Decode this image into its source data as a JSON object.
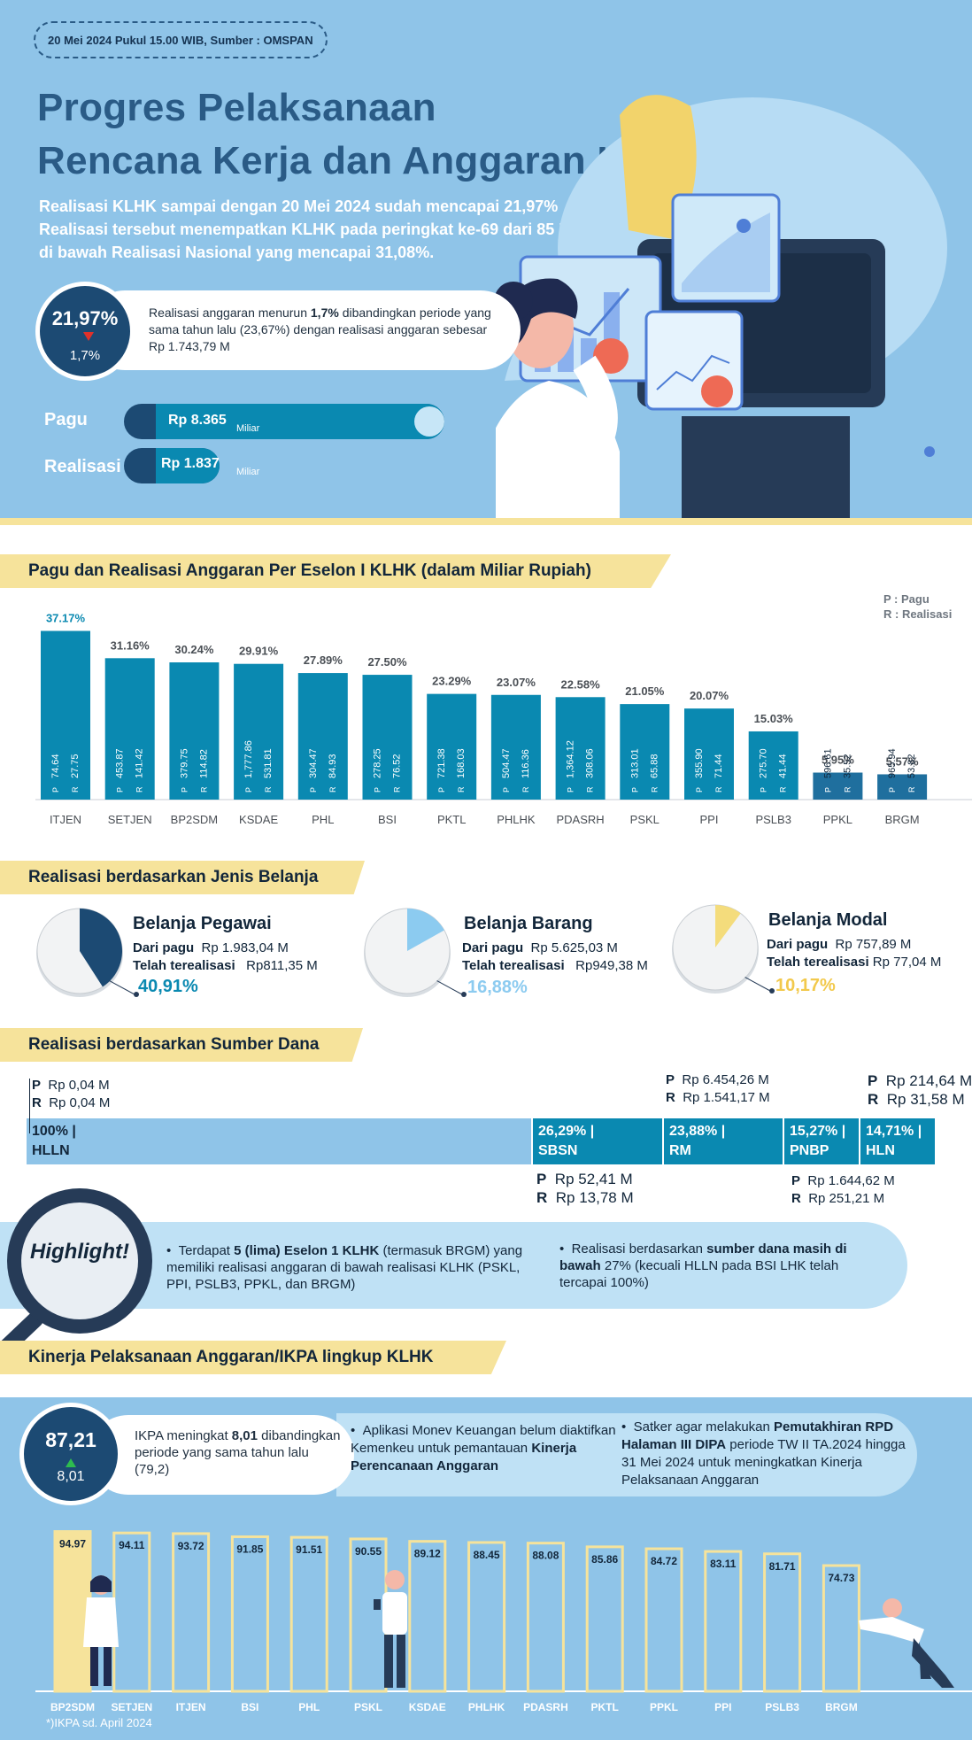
{
  "header": {
    "date_badge": "20 Mei 2024 Pukul 15.00 WIB, Sumber : OMSPAN",
    "title_line1": "Progres Pelaksanaan",
    "title_line2": "Rencana Kerja dan Anggaran KLHK TA. 2024",
    "lead_line1": "Realisasi KLHK sampai dengan 20 Mei 2024 sudah mencapai 21,97%",
    "lead_line2": "Realisasi tersebut menempatkan KLHK pada peringkat ke-69 dari 85 K/L",
    "lead_line3": "di bawah Realisasi Nasional yang mencapai 31,08%."
  },
  "summary": {
    "realisasi_pct": "21,97%",
    "change_pct": "1,7%",
    "change_direction": "down",
    "desc_1": "Realisasi  anggaran menurun ",
    "desc_bold": "1,7%",
    "desc_2": " dibandingkan periode yang sama tahun lalu (23,67%) dengan realisasi anggaran sebesar Rp 1.743,79 M"
  },
  "budget_bars": {
    "pagu_label": "Pagu",
    "pagu_value": "Rp 8.365",
    "pagu_unit": "Miliar",
    "realisasi_label": "Realisasi",
    "realisasi_value": "Rp 1.837",
    "realisasi_unit": "Miliar",
    "realisasi_fraction": 0.2196
  },
  "sections": {
    "eselon": "Pagu dan Realisasi Anggaran Per Eselon I KLHK (dalam Miliar Rupiah)",
    "jenis": "Realisasi berdasarkan Jenis Belanja",
    "sumber": "Realisasi berdasarkan Sumber Dana",
    "ikpa": "Kinerja Pelaksanaan Anggaran/IKPA lingkup KLHK"
  },
  "legend": {
    "p": "P : Pagu",
    "r": "R : Realisasi"
  },
  "colors": {
    "navy": "#1c4a73",
    "teal": "#0a89b1",
    "sky": "#8fc4e8",
    "yellow": "#f6e39b",
    "pie_light": "#8ccbf0",
    "pie_yellow": "#f4dc7c",
    "pct_teal": "#0a89b1",
    "pct_blue": "#8ccbf0",
    "pct_yellow": "#f2c94c"
  },
  "chart_data": [
    {
      "type": "bar",
      "categories": [
        "ITJEN",
        "SETJEN",
        "BP2SDM",
        "KSDAE",
        "PHL",
        "BSI",
        "PKTL",
        "PHLHK",
        "PDASRH",
        "PSKL",
        "PPI",
        "PSLB3",
        "PPKL",
        "BRGM"
      ],
      "series": [
        {
          "name": "Persentase",
          "values": [
            37.17,
            31.16,
            30.24,
            29.91,
            27.89,
            27.5,
            23.29,
            23.07,
            22.58,
            21.05,
            20.07,
            15.03,
            5.95,
            5.57
          ]
        }
      ],
      "pct_labels": [
        "37.17%",
        "31.16%",
        "30.24%",
        "29.91%",
        "27.89%",
        "27.50%",
        "23.29%",
        "23.07%",
        "22.58%",
        "21.05%",
        "20.07%",
        "15.03%",
        "5.95%",
        "5.57%"
      ],
      "pagu": [
        "74.64",
        "453.87",
        "379.75",
        "1,777.86",
        "304.47",
        "278.25",
        "721.38",
        "504.47",
        "1,364.12",
        "313.01",
        "355.90",
        "275.70",
        "596.61",
        "965.94"
      ],
      "realisasi": [
        "27.75",
        "141.42",
        "114.82",
        "531.81",
        "84.93",
        "76.52",
        "168.03",
        "116.36",
        "308.06",
        "65.88",
        "71.44",
        "41.44",
        "35.52",
        "53.82"
      ],
      "p_letter": "P",
      "r_letter": "R",
      "ylim": [
        0,
        40
      ]
    },
    {
      "type": "pie",
      "slices": [
        {
          "title": "Belanja Pegawai",
          "pagu": "Rp 1.983,04 M",
          "realisasi": "Rp811,35 M",
          "pct_label": "40,91%",
          "value": 40.91
        },
        {
          "title": "Belanja Barang",
          "pagu": "Rp 5.625,03 M",
          "realisasi": "Rp949,38 M",
          "pct_label": "16,88%",
          "value": 16.88
        },
        {
          "title": "Belanja Modal",
          "pagu": "Rp 757,89 M",
          "realisasi": "Rp 77,04 M",
          "pct_label": "10,17%",
          "value": 10.17
        }
      ],
      "pagu_label": "Dari pagu",
      "realisasi_label": "Telah terealisasi"
    },
    {
      "type": "table",
      "title": "Realisasi berdasarkan Sumber Dana",
      "sources": [
        {
          "name": "HLLN",
          "pct_label": "100% |",
          "value": 100,
          "pagu": "Rp 0,04 M",
          "realisasi": "Rp 0,04 M"
        },
        {
          "name": "SBSN",
          "pct_label": "26,29% |",
          "value": 26.29,
          "pagu": "Rp 52,41 M",
          "realisasi": "Rp 13,78 M"
        },
        {
          "name": "RM",
          "pct_label": "23,88% |",
          "value": 23.88,
          "pagu": "Rp 6.454,26 M",
          "realisasi": "Rp 1.541,17 M"
        },
        {
          "name": "PNBP",
          "pct_label": "15,27% |",
          "value": 15.27,
          "pagu": "Rp 1.644,62  M",
          "realisasi": "Rp    251,21 M"
        },
        {
          "name": "HLN",
          "pct_label": "14,71% |",
          "value": 14.71,
          "pagu": "Rp 214,64 M",
          "realisasi": "Rp   31,58 M"
        }
      ]
    },
    {
      "type": "bar",
      "categories": [
        "BP2SDM",
        "SETJEN",
        "ITJEN",
        "BSI",
        "PHL",
        "PSKL",
        "KSDAE",
        "PHLHK",
        "PDASRH",
        "PKTL",
        "PPKL",
        "PPI",
        "PSLB3",
        "BRGM"
      ],
      "series": [
        {
          "name": "IKPA",
          "values": [
            94.97,
            94.11,
            93.72,
            91.85,
            91.51,
            90.55,
            89.12,
            88.45,
            88.08,
            85.86,
            84.72,
            83.11,
            81.71,
            74.73
          ]
        }
      ],
      "labels": [
        "94.97",
        "94.11",
        "93.72",
        "91.85",
        "91.51",
        "90.55",
        "89.12",
        "88.45",
        "88.08",
        "85.86",
        "84.72",
        "83.11",
        "81.71",
        "74.73"
      ],
      "ylim": [
        0,
        100
      ]
    }
  ],
  "highlight": {
    "label": "Highlight!",
    "item1_a": "Terdapat ",
    "item1_b": "5 (lima) Eselon 1 KLHK",
    "item1_c": " (termasuk BRGM) yang memiliki realisasi anggaran  di bawah realisasi KLHK (PSKL, PPI, PSLB3, PPKL, dan BRGM)",
    "item2_a": "Realisasi berdasarkan ",
    "item2_b": "sumber dana masih di bawah",
    "item2_c": " 27% (kecuali HLLN pada BSI LHK telah tercapai 100%)"
  },
  "ikpa": {
    "value": "87,21",
    "change": "8,01",
    "desc_1": "IKPA meningkat ",
    "desc_bold": "8,01",
    "desc_2": " dibandingkan periode yang sama tahun lalu (79,2)",
    "note1_a": "Aplikasi Monev Keuangan belum diaktifkan Kemenkeu untuk pemantauan ",
    "note1_b": "Kinerja Perencanaan Anggaran",
    "note2_a": "Satker agar melakukan ",
    "note2_b": "Pemutakhiran RPD Halaman  III DIPA",
    "note2_c": " periode TW II TA.2024 hingga 31 Mei 2024 untuk meningkatkan Kinerja Pelaksanaan Anggaran",
    "footnote": "*)IKPA sd. April 2024"
  }
}
